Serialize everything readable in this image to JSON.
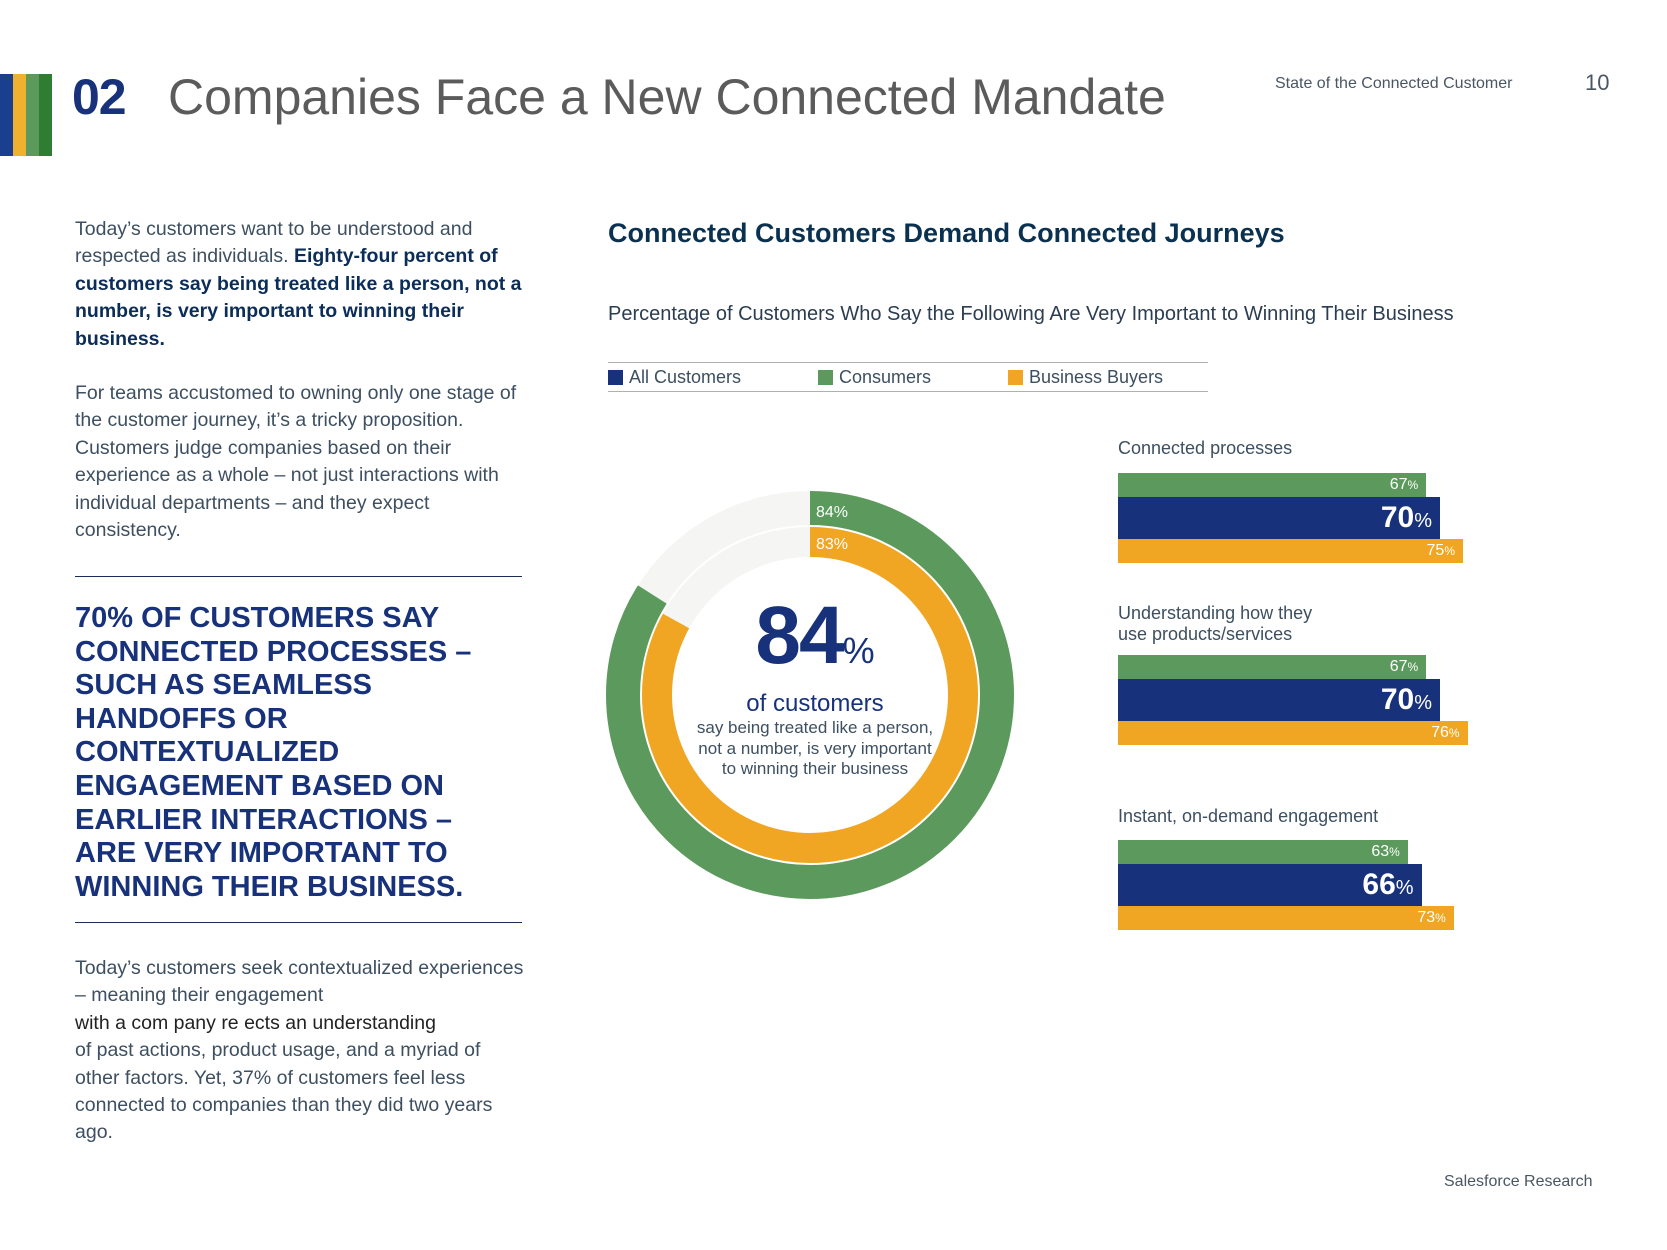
{
  "header": {
    "section_number": "02",
    "title": "Companies Face a New Connected Mandate",
    "doc_name": "State of the Connected Customer",
    "page_number": "10",
    "stripe_colors": [
      "#1b3f8f",
      "#f0b030",
      "#5b9a5c",
      "#2e7d32"
    ]
  },
  "left": {
    "para1_plain": "Today’s customers want to be understood and respected as individuals. ",
    "para1_bold": "Eighty-four percent of customers say being treated like a person, not a number, is very important to winning their business.",
    "para2": "For teams accustomed to owning only one stage of the customer journey, it’s a tricky proposition. Customers judge companies based on their experience as a whole – not just interactions with individual departments – and they expect consistency.",
    "callout": "70% of customers say connected processes – such as seamless handoffs or contextualized engagement based on earlier interactions – are very important to winning their business.",
    "para3_a": "Today’s customers seek contextualized experiences – meaning their engagement",
    "para3_b": "with a com pany re  ects an understanding",
    "para3_c": "of past actions, product usage, and a myriad of other factors. Yet, 37% of customers feel less connected to companies than they did two years ago."
  },
  "chart_data": {
    "type": "bar",
    "title": "Connected Customers Demand Connected Journeys",
    "subtitle": "Percentage of Customers Who Say the Following Are Very Important to Winning Their Business",
    "legend": [
      {
        "name": "All Customers",
        "color": "#17327a"
      },
      {
        "name": "Consumers",
        "color": "#5b9a5c"
      },
      {
        "name": "Business Buyers",
        "color": "#f0a622"
      }
    ],
    "percent_sign": "%",
    "orientation": "horizontal",
    "xlim": [
      0,
      100
    ],
    "categories": [
      "Connected processes",
      "Understanding how they use products/services",
      "Instant, on-demand engagement"
    ],
    "category_lines": [
      [
        "Connected processes"
      ],
      [
        "Understanding how they",
        "use products/services"
      ],
      [
        "Instant, on-demand engagement"
      ]
    ],
    "series": [
      {
        "name": "Consumers",
        "key": "con",
        "values": [
          67,
          67,
          63
        ]
      },
      {
        "name": "All Customers",
        "key": "all",
        "values": [
          70,
          70,
          66
        ]
      },
      {
        "name": "Business Buyers",
        "key": "bb",
        "values": [
          75,
          76,
          73
        ]
      }
    ],
    "donut": {
      "type": "pie",
      "rings": [
        {
          "name": "Consumers",
          "value": 84,
          "label": "84%"
        },
        {
          "name": "Business Buyers",
          "value": 83,
          "label": "83%"
        }
      ],
      "center_value": "84",
      "center_symbol": "%",
      "center_heading": "of customers",
      "center_text": "say being treated like a person, not a number, is very important to winning their business"
    }
  },
  "footer": "Salesforce Research"
}
